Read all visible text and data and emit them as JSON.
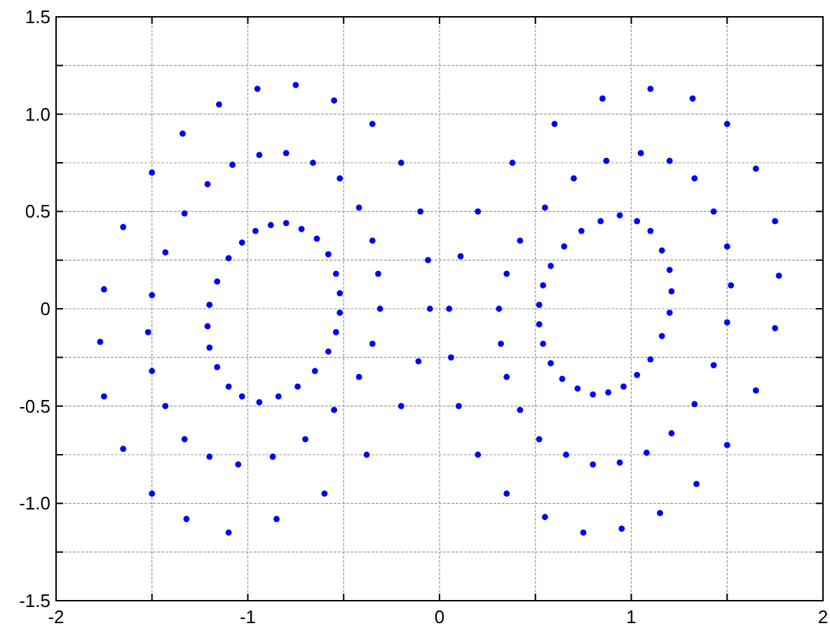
{
  "chart_data": {
    "type": "scatter",
    "xlim": [
      -2,
      2
    ],
    "ylim": [
      -1.5,
      1.5
    ],
    "xticks": [
      -2,
      {
        "value": -1.5,
        "label": null
      },
      -1,
      {
        "value": -0.5,
        "label": null
      },
      0,
      {
        "value": 0.5,
        "label": null
      },
      1,
      {
        "value": 1.5,
        "label": null
      },
      2
    ],
    "yticks": [
      {
        "value": -1.5,
        "label": "-1.5"
      },
      {
        "value": -1.25,
        "label": null
      },
      {
        "value": -1,
        "label": "-1.0"
      },
      {
        "value": -0.75,
        "label": null
      },
      {
        "value": -0.5,
        "label": "-0.5"
      },
      {
        "value": -0.25,
        "label": null
      },
      0,
      {
        "value": 0.25,
        "label": null
      },
      {
        "value": 0.5,
        "label": "0.5"
      },
      {
        "value": 0.75,
        "label": null
      },
      {
        "value": 1,
        "label": "1.0"
      },
      {
        "value": 1.25,
        "label": null
      },
      {
        "value": 1.5,
        "label": "1.5"
      }
    ],
    "grid": true,
    "marker": "circle",
    "series": [
      {
        "color": "#0000ff",
        "x": [
          -0.75,
          -0.35,
          -0.1,
          -0.05,
          -0.2,
          -0.6,
          -1.1,
          -1.5,
          -1.75,
          -1.75,
          -1.5,
          -1.15,
          -0.55,
          -0.2,
          -0.06,
          -0.11,
          -0.38,
          -0.85,
          -1.32,
          -1.65,
          -1.77,
          -1.65,
          -1.34,
          -0.95,
          -0.8,
          -0.52,
          -0.35,
          -0.31,
          -0.42,
          -0.7,
          -1.05,
          -1.33,
          -1.5,
          -1.5,
          -1.33,
          -1.08,
          -0.66,
          -0.42,
          -0.32,
          -0.35,
          -0.55,
          -0.87,
          -1.2,
          -1.43,
          -1.52,
          -1.43,
          -1.21,
          -0.94,
          -0.8,
          -0.64,
          -0.54,
          -0.52,
          -0.58,
          -0.74,
          -0.94,
          -1.1,
          -1.2,
          -1.2,
          -1.1,
          -0.96,
          -0.72,
          -0.58,
          -0.52,
          -0.54,
          -0.65,
          -0.84,
          -1.03,
          -1.16,
          -1.21,
          -1.16,
          -1.03,
          -0.88
        ],
        "values": [
          1.15,
          0.95,
          0.5,
          0,
          -0.5,
          -0.95,
          -1.15,
          -0.95,
          -0.45,
          0.1,
          0.7,
          1.05,
          1.07,
          0.75,
          0.25,
          -0.27,
          -0.75,
          -1.08,
          -1.08,
          -0.72,
          -0.17,
          0.42,
          0.9,
          1.13,
          0.8,
          0.67,
          0.35,
          0,
          -0.35,
          -0.67,
          -0.8,
          -0.67,
          -0.32,
          0.07,
          0.49,
          0.74,
          0.75,
          0.52,
          0.18,
          -0.18,
          -0.52,
          -0.76,
          -0.76,
          -0.5,
          -0.12,
          0.29,
          0.64,
          0.79,
          0.44,
          0.36,
          0.18,
          -0.02,
          -0.22,
          -0.4,
          -0.48,
          -0.4,
          -0.2,
          0.02,
          0.26,
          0.4,
          0.41,
          0.28,
          0.08,
          -0.12,
          -0.32,
          -0.45,
          -0.45,
          -0.3,
          -0.09,
          0.14,
          0.34,
          0.43
        ]
      },
      {
        "color": "#0000ff",
        "x": [
          0.75,
          0.35,
          0.1,
          0.05,
          0.2,
          0.6,
          1.1,
          1.5,
          1.75,
          1.75,
          1.5,
          1.15,
          0.55,
          0.2,
          0.06,
          0.11,
          0.38,
          0.85,
          1.32,
          1.65,
          1.77,
          1.65,
          1.34,
          0.95,
          0.8,
          0.52,
          0.35,
          0.31,
          0.42,
          0.7,
          1.05,
          1.33,
          1.5,
          1.5,
          1.33,
          1.08,
          0.66,
          0.42,
          0.32,
          0.35,
          0.55,
          0.87,
          1.2,
          1.43,
          1.52,
          1.43,
          1.21,
          0.94,
          0.8,
          0.64,
          0.54,
          0.52,
          0.58,
          0.74,
          0.94,
          1.1,
          1.2,
          1.2,
          1.1,
          0.96,
          0.72,
          0.58,
          0.52,
          0.54,
          0.65,
          0.84,
          1.03,
          1.16,
          1.21,
          1.16,
          1.03,
          0.88
        ],
        "values": [
          -1.15,
          -0.95,
          -0.5,
          0,
          0.5,
          0.95,
          1.13,
          0.95,
          0.45,
          -0.1,
          -0.7,
          -1.05,
          -1.07,
          -0.75,
          -0.25,
          0.27,
          0.75,
          1.08,
          1.08,
          0.72,
          0.17,
          -0.42,
          -0.9,
          -1.13,
          -0.8,
          -0.67,
          -0.35,
          0,
          0.35,
          0.67,
          0.8,
          0.67,
          0.32,
          -0.07,
          -0.49,
          -0.74,
          -0.75,
          -0.52,
          -0.18,
          0.18,
          0.52,
          0.76,
          0.76,
          0.5,
          0.12,
          -0.29,
          -0.64,
          -0.79,
          -0.44,
          -0.36,
          -0.18,
          0.02,
          0.22,
          0.4,
          0.48,
          0.4,
          0.2,
          -0.02,
          -0.26,
          -0.4,
          -0.41,
          -0.28,
          -0.08,
          0.12,
          0.32,
          0.45,
          0.45,
          0.3,
          0.09,
          -0.14,
          -0.34,
          -0.43
        ]
      }
    ]
  }
}
